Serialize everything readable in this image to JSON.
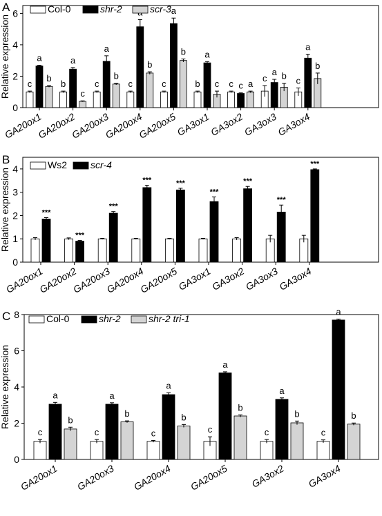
{
  "figure": {
    "panels": [
      {
        "letter": "A"
      },
      {
        "letter": "B"
      },
      {
        "letter": "C"
      }
    ]
  },
  "chart_data": [
    {
      "type": "bar",
      "panel": "A",
      "ylabel": "Relative expression",
      "ylim": [
        0,
        6.5
      ],
      "yticks": [
        0,
        2,
        4,
        6
      ],
      "categories": [
        "GA20ox1",
        "GA20ox2",
        "GA20ox3",
        "GA20ox4",
        "GA20ox5",
        "GA3ox1",
        "GA3ox2",
        "GA3ox3",
        "GA3ox4"
      ],
      "legend_position": "top-left",
      "series": [
        {
          "name": "Col-0",
          "italic": false,
          "fill": "#ffffff",
          "values": [
            1.0,
            1.0,
            1.0,
            1.0,
            1.0,
            1.0,
            1.0,
            1.05,
            1.0
          ],
          "errors": [
            0.05,
            0.05,
            0.05,
            0.05,
            0.05,
            0.05,
            0.05,
            0.35,
            0.25
          ],
          "letters": [
            "c",
            "b",
            "c",
            "c",
            "c",
            "b",
            "c",
            "c",
            "c"
          ]
        },
        {
          "name": "shr-2",
          "italic": true,
          "fill": "#000000",
          "values": [
            2.65,
            2.45,
            2.95,
            5.15,
            5.35,
            2.85,
            0.9,
            1.6,
            3.15
          ],
          "errors": [
            0.05,
            0.1,
            0.35,
            0.45,
            0.35,
            0.08,
            0.04,
            0.2,
            0.25
          ],
          "letters": [
            "a",
            "a",
            "a",
            "a",
            "a",
            "a",
            "c",
            "a",
            "a"
          ]
        },
        {
          "name": "scr-3",
          "italic": true,
          "fill": "#d4d4d4",
          "values": [
            1.35,
            0.4,
            1.5,
            2.2,
            3.0,
            0.85,
            1.0,
            1.3,
            1.85
          ],
          "errors": [
            0.05,
            0.03,
            0.05,
            0.08,
            0.1,
            0.2,
            0.05,
            0.25,
            0.35
          ],
          "letters": [
            "b",
            "c",
            "b",
            "b",
            "b",
            "c",
            "a",
            "b",
            "b"
          ]
        }
      ]
    },
    {
      "type": "bar",
      "panel": "B",
      "ylabel": "Relative expression",
      "ylim": [
        0,
        4.5
      ],
      "yticks": [
        0,
        1,
        2,
        3,
        4
      ],
      "categories": [
        "GA20ox1",
        "GA20ox2",
        "GA20ox3",
        "GA20ox4",
        "GA20ox5",
        "GA3ox1",
        "GA3ox2",
        "GA3ox3",
        "GA3ox4"
      ],
      "legend_position": "top-left",
      "series": [
        {
          "name": "Ws2",
          "italic": false,
          "fill": "#ffffff",
          "values": [
            1.0,
            1.0,
            1.0,
            1.0,
            1.0,
            1.0,
            1.0,
            1.0,
            1.0
          ],
          "errors": [
            0.05,
            0.04,
            0.02,
            0.02,
            0.02,
            0.02,
            0.05,
            0.15,
            0.15
          ],
          "letters": [
            "",
            "",
            "",
            "",
            "",
            "",
            "",
            "",
            ""
          ]
        },
        {
          "name": "scr-4",
          "italic": true,
          "fill": "#000000",
          "values": [
            1.85,
            0.9,
            2.1,
            3.2,
            3.1,
            2.6,
            3.15,
            2.15,
            3.97
          ],
          "errors": [
            0.06,
            0.03,
            0.07,
            0.1,
            0.07,
            0.2,
            0.1,
            0.3,
            0.03
          ],
          "letters": [
            "***",
            "***",
            "***",
            "***",
            "***",
            "***",
            "***",
            "***",
            "***"
          ]
        }
      ]
    },
    {
      "type": "bar",
      "panel": "C",
      "ylabel": "Relative expression",
      "ylim": [
        0,
        8
      ],
      "yticks": [
        0,
        2,
        4,
        6,
        8
      ],
      "categories": [
        "GA20ox1",
        "GA20ox3",
        "GA20ox4",
        "GA20ox5",
        "GA3ox2",
        "GA3ox4"
      ],
      "legend_position": "top-left",
      "series": [
        {
          "name": "Col-0",
          "italic": false,
          "fill": "#ffffff",
          "values": [
            1.0,
            1.0,
            1.0,
            1.0,
            1.0,
            1.0
          ],
          "errors": [
            0.1,
            0.1,
            0.05,
            0.25,
            0.1,
            0.08
          ],
          "letters": [
            "c",
            "c",
            "c",
            "c",
            "c",
            "c"
          ]
        },
        {
          "name": "shr-2",
          "italic": true,
          "fill": "#000000",
          "values": [
            3.05,
            3.05,
            3.58,
            4.78,
            3.32,
            7.7
          ],
          "errors": [
            0.1,
            0.08,
            0.1,
            0.06,
            0.08,
            0.05
          ],
          "letters": [
            "a",
            "a",
            "a",
            "a",
            "a",
            "a"
          ]
        },
        {
          "name": "shr-2 tri-1",
          "italic": true,
          "fill": "#d4d4d4",
          "values": [
            1.68,
            2.08,
            1.85,
            2.4,
            2.02,
            1.95
          ],
          "errors": [
            0.1,
            0.05,
            0.08,
            0.06,
            0.1,
            0.06
          ],
          "letters": [
            "b",
            "b",
            "b",
            "b",
            "b",
            "b"
          ]
        }
      ]
    }
  ]
}
